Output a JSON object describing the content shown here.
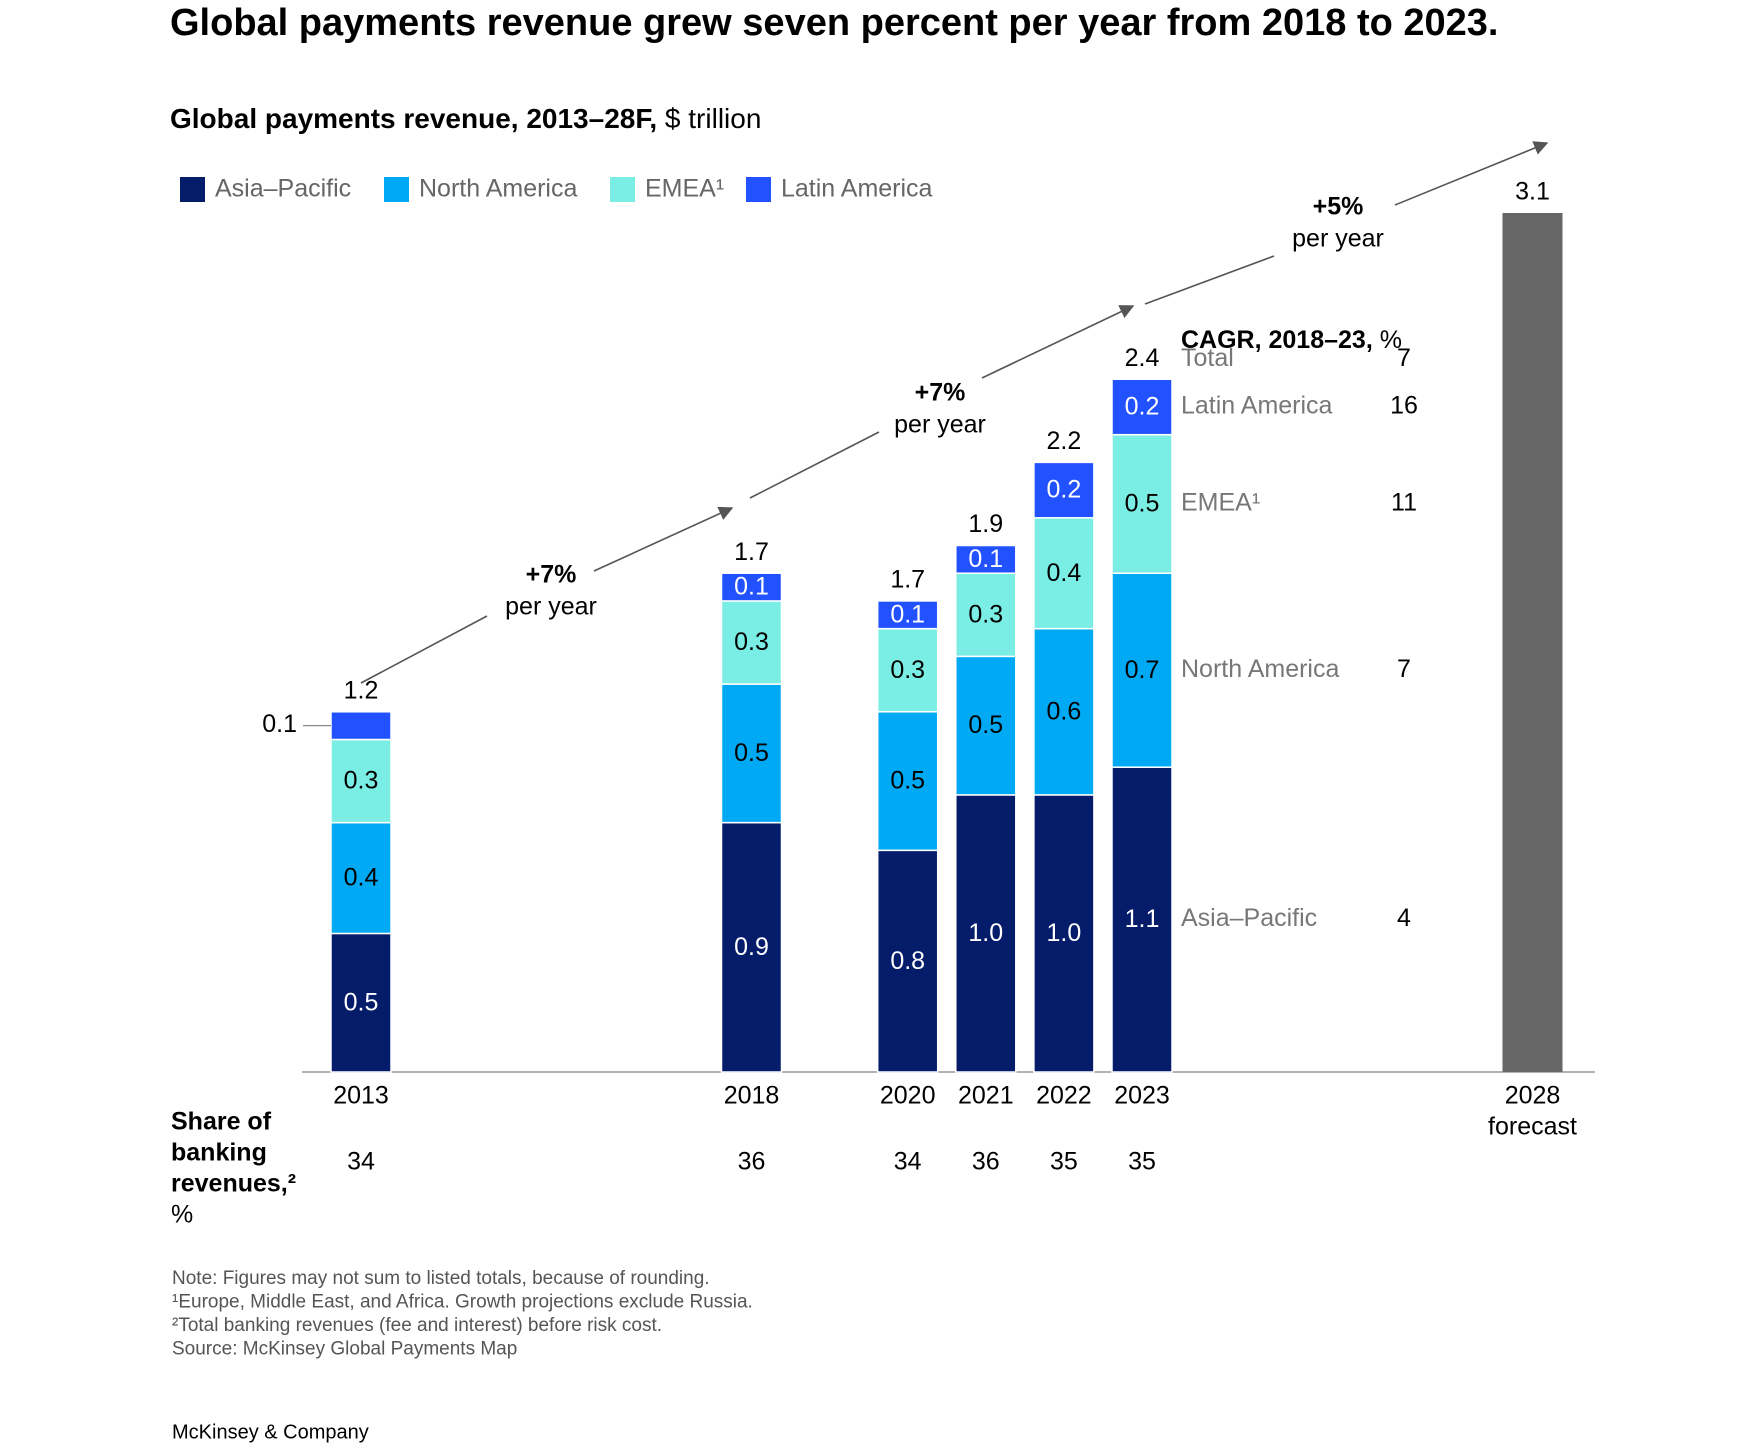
{
  "chart_data": {
    "type": "stacked_bar",
    "title": "Global payments revenue grew seven percent per year from 2018 to 2023.",
    "subtitle": "Global payments revenue, 2013–28F,",
    "unit": "$ trillion",
    "categories": [
      "2013",
      "2018",
      "2020",
      "2021",
      "2022",
      "2023"
    ],
    "series": [
      {
        "name": "Asia–Pacific",
        "color": "#051c6b",
        "values": [
          0.5,
          0.9,
          0.8,
          1.0,
          1.0,
          1.1
        ],
        "value_labels": [
          "0.5",
          "0.9",
          "0.8",
          "1.0",
          "1.0",
          "1.1"
        ]
      },
      {
        "name": "North America",
        "color": "#00a9f4",
        "values": [
          0.4,
          0.5,
          0.5,
          0.5,
          0.6,
          0.7
        ]
      },
      {
        "name": "EMEA¹",
        "color": "#7aeee4",
        "values": [
          0.3,
          0.3,
          0.3,
          0.3,
          0.4,
          0.5
        ]
      },
      {
        "name": "Latin America",
        "color": "#2251ff",
        "values": [
          0.1,
          0.1,
          0.1,
          0.1,
          0.2,
          0.2
        ]
      }
    ],
    "totals": [
      1.2,
      1.7,
      1.7,
      1.9,
      2.2,
      2.4
    ],
    "forecast": {
      "year": "2028",
      "label": "forecast",
      "value": 3.1,
      "color": "#666666"
    },
    "growth": [
      {
        "rate": "+7%",
        "label": "per year"
      },
      {
        "rate": "+7%",
        "label": "per year"
      },
      {
        "rate": "+5%",
        "label": "per year"
      }
    ],
    "cagr": {
      "title": "CAGR, 2018–23,",
      "unit": "%",
      "total_label": "Total",
      "total": 7,
      "values": [
        4,
        7,
        11,
        16
      ]
    },
    "share": {
      "label": [
        "Share of",
        "banking",
        "revenues,²",
        "%"
      ],
      "values": [
        34,
        36,
        34,
        36,
        35,
        35
      ]
    },
    "notes": [
      "Note: Figures may not sum to listed totals, because of rounding.",
      "¹Europe, Middle East, and Africa. Growth projections exclude Russia.",
      "²Total banking revenues (fee and interest) before risk cost.",
      "Source: McKinsey Global Payments Map"
    ],
    "footer": "McKinsey & Company"
  }
}
